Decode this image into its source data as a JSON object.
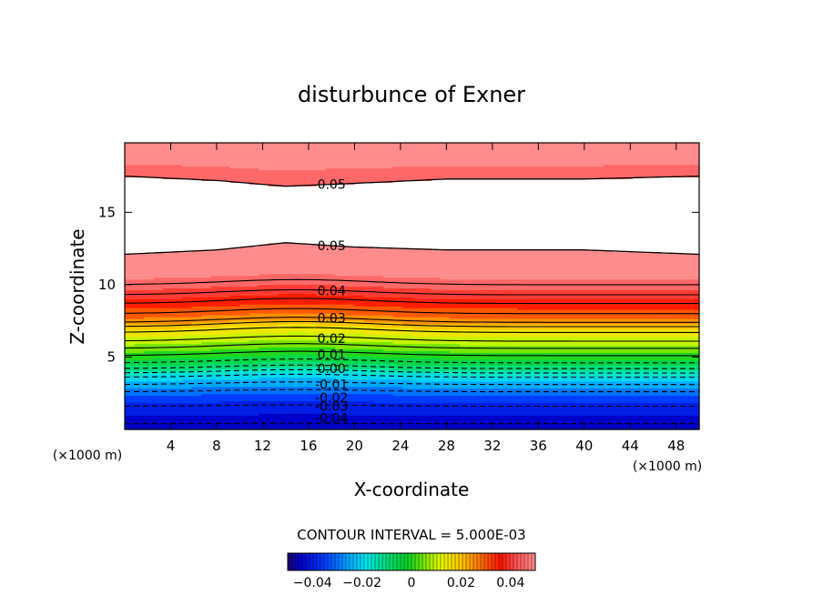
{
  "chart_data": {
    "type": "contour",
    "title": "disturbunce of Exner",
    "xlabel": "X-coordinate",
    "ylabel": "Z-coordinate",
    "x_unit": "(×1000 m)",
    "y_unit": "(×1000 m)",
    "xlim": [
      0,
      50
    ],
    "ylim": [
      0,
      19.8
    ],
    "x_ticks": [
      4,
      8,
      12,
      16,
      20,
      24,
      28,
      32,
      36,
      40,
      44,
      48
    ],
    "y_ticks": [
      5,
      10,
      15
    ],
    "contour_interval_text": "CONTOUR INTERVAL = 5.000E-03",
    "contour_interval": 0.005,
    "value_range": [
      -0.05,
      0.05
    ],
    "blank_region_above": 0.05,
    "contour_labels": [
      "0.05",
      "0.05",
      "0.04",
      "0.03",
      "0.02",
      "0.01",
      "0.00",
      "-0.01",
      "-0.02",
      "-0.03",
      "-0.04"
    ],
    "contour_label_x": 18,
    "profile": {
      "z": [
        0.4,
        1.6,
        2.6,
        3.1,
        3.6,
        3.9,
        4.2,
        4.6,
        5.1,
        5.6,
        6.1,
        6.7,
        7.1,
        7.4,
        8.0,
        8.7,
        9.3,
        10.0,
        10.8,
        11.4,
        12.1
      ],
      "value": [
        -0.045,
        -0.04,
        -0.03,
        -0.025,
        -0.02,
        -0.015,
        -0.01,
        -0.005,
        0.0,
        0.005,
        0.01,
        0.015,
        0.02,
        0.025,
        0.03,
        0.035,
        0.04,
        0.045,
        0.05,
        0.05,
        0.05
      ]
    },
    "lower_boundary_of_blank_region": {
      "x": [
        0,
        8,
        14,
        20,
        28,
        40,
        50
      ],
      "z": [
        12.1,
        12.4,
        12.9,
        12.6,
        12.4,
        12.4,
        12.1
      ]
    },
    "upper_boundary_of_blank_region": {
      "x": [
        0,
        8,
        14,
        20,
        28,
        40,
        50
      ],
      "z": [
        17.5,
        17.2,
        16.8,
        17.0,
        17.3,
        17.3,
        17.5
      ]
    },
    "colorbar": {
      "ticks": [
        -0.04,
        -0.02,
        0,
        0.02,
        0.04
      ],
      "tick_labels": [
        "−0.04",
        "−0.02",
        "0",
        "0.02",
        "0.04"
      ]
    }
  }
}
